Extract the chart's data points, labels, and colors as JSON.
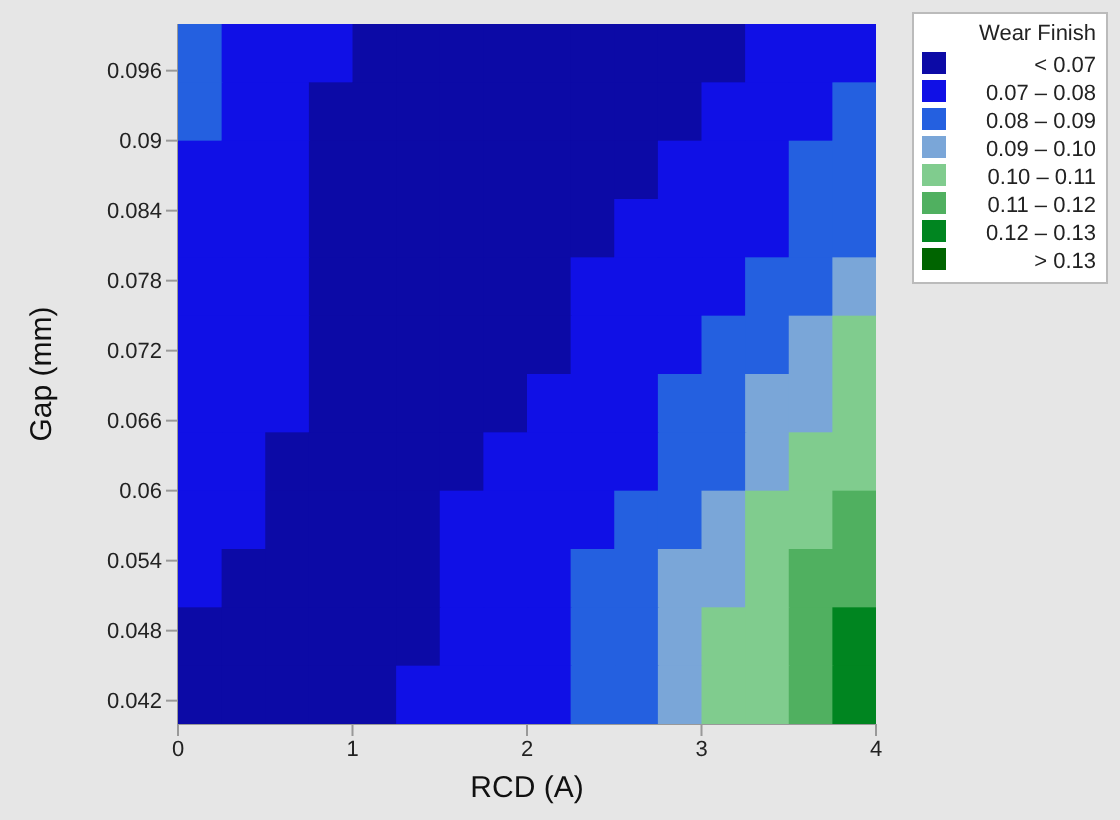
{
  "chart_data": {
    "type": "heatmap",
    "xlabel": "RCD (A)",
    "ylabel": "Gap (mm)",
    "legend_title": "Wear Finish",
    "xlim": [
      0,
      4
    ],
    "ylim": [
      0.04,
      0.1
    ],
    "clim": [
      0.06,
      0.14
    ],
    "xticks": [
      0,
      1,
      2,
      3,
      4
    ],
    "yticks": [
      0.042,
      0.048,
      0.054,
      0.06,
      0.066,
      0.072,
      0.078,
      0.084,
      0.09,
      0.096
    ],
    "cticks": [
      {
        "value": 0.065,
        "label": "< 0.07"
      },
      {
        "value": 0.075,
        "label": "0.07 – 0.08"
      },
      {
        "value": 0.085,
        "label": "0.08 – 0.09"
      },
      {
        "value": 0.095,
        "label": "0.09 – 0.10"
      },
      {
        "value": 0.105,
        "label": "0.10 – 0.11"
      },
      {
        "value": 0.115,
        "label": "0.11 – 0.12"
      },
      {
        "value": 0.125,
        "label": "0.12 – 0.13"
      },
      {
        "value": 0.135,
        "label": "> 0.13"
      }
    ],
    "colors": [
      "#0c0aa6",
      "#1010e6",
      "#2460e0",
      "#7aa6d8",
      "#80cc8e",
      "#50b060",
      "#008520",
      "#006400"
    ],
    "cells": [
      [
        0.085,
        0.075,
        0.075,
        0.075,
        0.065,
        0.065,
        0.065,
        0.065,
        0.065,
        0.065,
        0.065,
        0.065,
        0.065,
        0.075,
        0.075,
        0.075
      ],
      [
        0.085,
        0.075,
        0.075,
        0.065,
        0.065,
        0.065,
        0.065,
        0.065,
        0.065,
        0.065,
        0.065,
        0.065,
        0.075,
        0.075,
        0.075,
        0.085
      ],
      [
        0.075,
        0.075,
        0.075,
        0.065,
        0.065,
        0.065,
        0.065,
        0.065,
        0.065,
        0.065,
        0.065,
        0.075,
        0.075,
        0.075,
        0.085,
        0.085
      ],
      [
        0.075,
        0.075,
        0.075,
        0.065,
        0.065,
        0.065,
        0.065,
        0.065,
        0.065,
        0.065,
        0.075,
        0.075,
        0.075,
        0.075,
        0.085,
        0.085
      ],
      [
        0.075,
        0.075,
        0.075,
        0.065,
        0.065,
        0.065,
        0.065,
        0.065,
        0.065,
        0.075,
        0.075,
        0.075,
        0.075,
        0.085,
        0.085,
        0.095
      ],
      [
        0.075,
        0.075,
        0.075,
        0.065,
        0.065,
        0.065,
        0.065,
        0.065,
        0.065,
        0.075,
        0.075,
        0.075,
        0.085,
        0.085,
        0.095,
        0.105
      ],
      [
        0.075,
        0.075,
        0.075,
        0.065,
        0.065,
        0.065,
        0.065,
        0.065,
        0.075,
        0.075,
        0.075,
        0.085,
        0.085,
        0.095,
        0.095,
        0.105
      ],
      [
        0.075,
        0.075,
        0.065,
        0.065,
        0.065,
        0.065,
        0.065,
        0.075,
        0.075,
        0.075,
        0.075,
        0.085,
        0.085,
        0.095,
        0.105,
        0.105
      ],
      [
        0.075,
        0.075,
        0.065,
        0.065,
        0.065,
        0.065,
        0.075,
        0.075,
        0.075,
        0.075,
        0.085,
        0.085,
        0.095,
        0.105,
        0.105,
        0.115
      ],
      [
        0.075,
        0.065,
        0.065,
        0.065,
        0.065,
        0.065,
        0.075,
        0.075,
        0.075,
        0.085,
        0.085,
        0.095,
        0.095,
        0.105,
        0.115,
        0.115
      ],
      [
        0.065,
        0.065,
        0.065,
        0.065,
        0.065,
        0.065,
        0.075,
        0.075,
        0.075,
        0.085,
        0.085,
        0.095,
        0.105,
        0.105,
        0.115,
        0.125
      ],
      [
        0.065,
        0.065,
        0.065,
        0.065,
        0.065,
        0.075,
        0.075,
        0.075,
        0.075,
        0.085,
        0.085,
        0.095,
        0.105,
        0.105,
        0.115,
        0.125
      ]
    ]
  }
}
